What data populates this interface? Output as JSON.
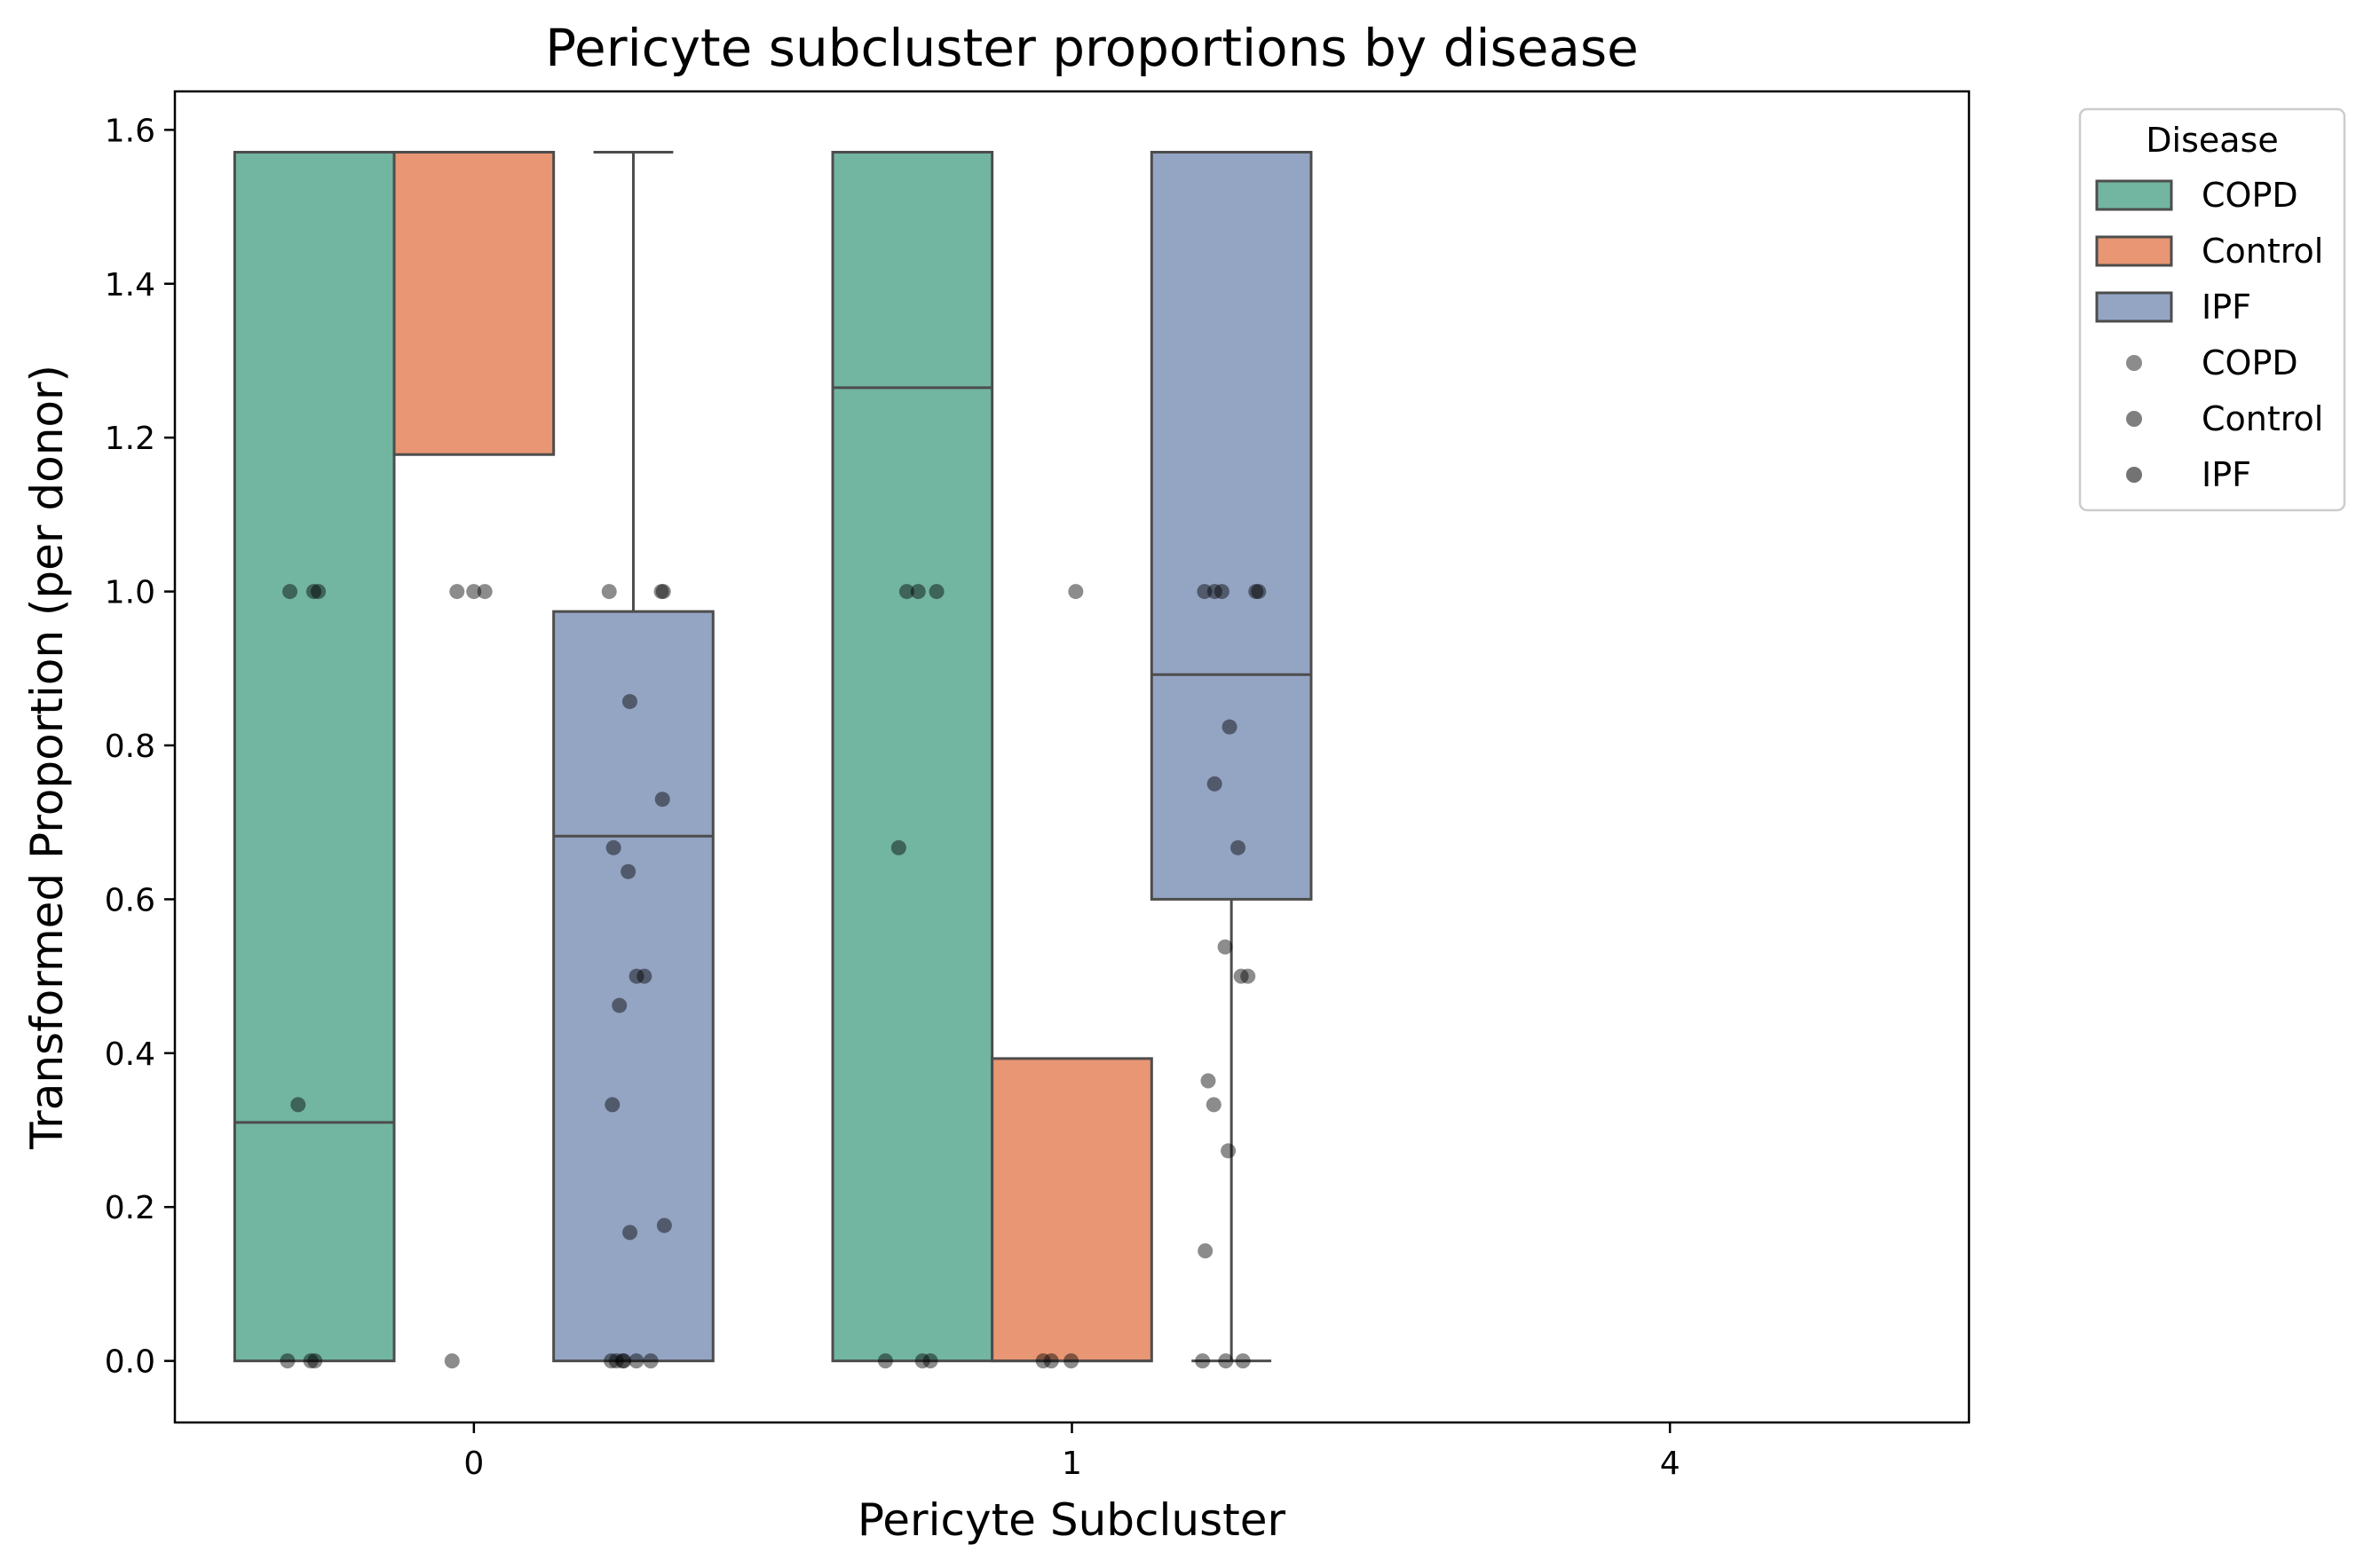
{
  "chart_data": {
    "type": "box",
    "title": "Pericyte subcluster proportions by disease",
    "xlabel": "Pericyte Subcluster",
    "ylabel": "Transformed Proportion (per donor)",
    "categories": [
      "0",
      "1",
      "4"
    ],
    "ylim": [
      -0.08,
      1.65
    ],
    "yticks": [
      "0.0",
      "0.2",
      "0.4",
      "0.6",
      "0.8",
      "1.0",
      "1.2",
      "1.4",
      "1.6"
    ],
    "grid": false,
    "legend": {
      "title": "Disease",
      "placement": "outside-top-right",
      "box_entries": [
        "COPD",
        "Control",
        "IPF"
      ],
      "point_entries": [
        "COPD",
        "Control",
        "IPF"
      ]
    },
    "colors": {
      "COPD": "#72b5a0",
      "Control": "#e89673",
      "IPF": "#94a4c3",
      "box_edge": "#4d4d4d",
      "points": "#000000"
    },
    "series": [
      {
        "name": "COPD",
        "boxes": [
          {
            "category": "0",
            "q1": 0.0,
            "median": 0.31,
            "q3": 1.571,
            "whisker_low": 0.0,
            "whisker_high": 1.571,
            "points": [
              1.0,
              1.0,
              1.0,
              0.333,
              0.0,
              0.0,
              0.0
            ]
          },
          {
            "category": "1",
            "q1": 0.0,
            "median": 1.265,
            "q3": 1.571,
            "whisker_low": 0.0,
            "whisker_high": 1.571,
            "points": [
              1.0,
              1.0,
              1.0,
              0.667,
              0.0,
              0.0,
              0.0
            ]
          },
          {
            "category": "4",
            "points": []
          }
        ]
      },
      {
        "name": "Control",
        "boxes": [
          {
            "category": "0",
            "q1": 1.178,
            "median": 1.571,
            "q3": 1.571,
            "whisker_low": 1.178,
            "whisker_high": 1.571,
            "points": [
              1.0,
              1.0,
              1.0,
              0.0
            ]
          },
          {
            "category": "1",
            "q1": 0.0,
            "median": 0.0,
            "q3": 0.393,
            "whisker_low": 0.0,
            "whisker_high": 0.393,
            "points": [
              1.0,
              0.0,
              0.0,
              0.0
            ]
          },
          {
            "category": "4",
            "points": []
          }
        ]
      },
      {
        "name": "IPF",
        "boxes": [
          {
            "category": "0",
            "q1": 0.0,
            "median": 0.682,
            "q3": 0.974,
            "whisker_low": 0.0,
            "whisker_high": 1.571,
            "points": [
              1.0,
              1.0,
              1.0,
              0.857,
              0.73,
              0.667,
              0.636,
              0.5,
              0.5,
              0.462,
              0.333,
              0.176,
              0.167,
              0.0,
              0.0,
              0.0,
              0.0,
              0.0,
              0.0
            ]
          },
          {
            "category": "1",
            "q1": 0.6,
            "median": 0.892,
            "q3": 1.571,
            "whisker_low": 0.0,
            "whisker_high": 1.571,
            "points": [
              1.0,
              1.0,
              1.0,
              1.0,
              1.0,
              0.824,
              0.75,
              0.667,
              0.538,
              0.5,
              0.5,
              0.364,
              0.333,
              0.273,
              0.143,
              0.0,
              0.0,
              0.0
            ]
          },
          {
            "category": "4",
            "points": []
          }
        ]
      }
    ]
  }
}
